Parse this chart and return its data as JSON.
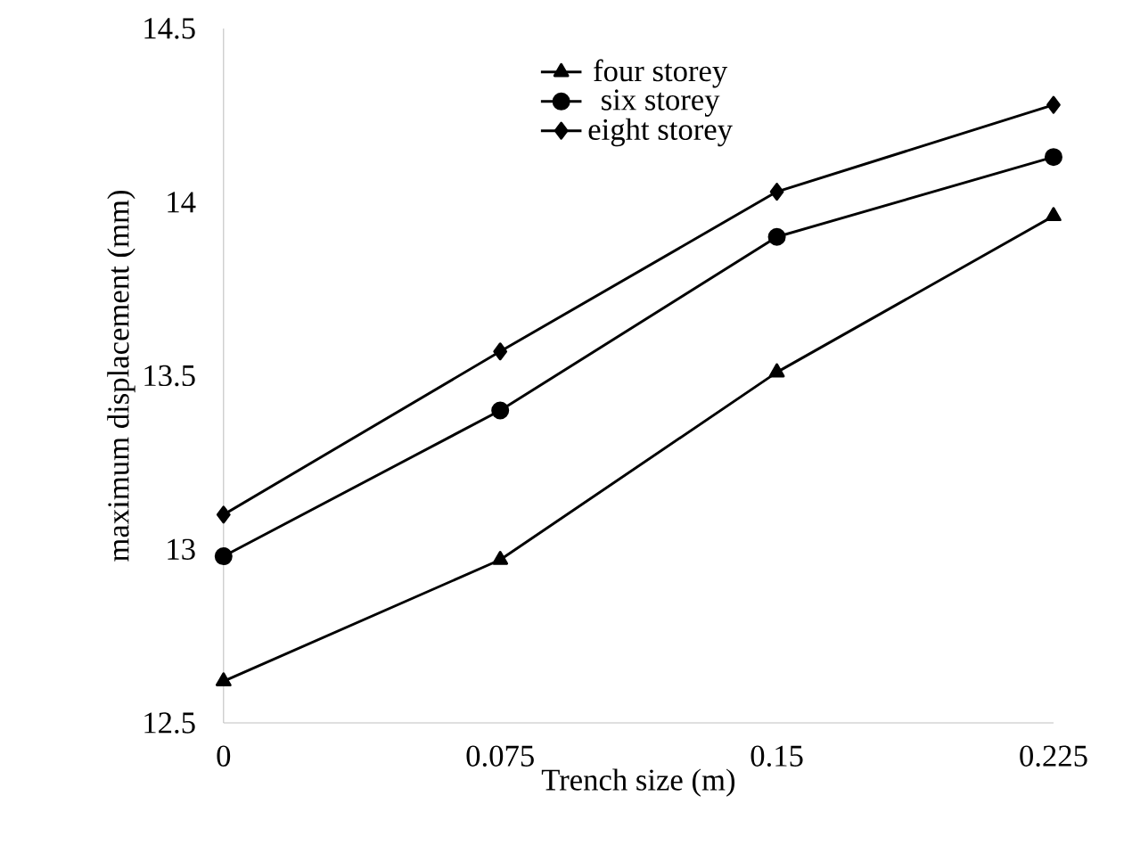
{
  "chart_data": {
    "type": "line",
    "xlabel": "Trench size (m)",
    "ylabel": "maximum  displacement (mm)",
    "categories": [
      "0",
      "0.075",
      "0.15",
      "0.225"
    ],
    "series": [
      {
        "name": "four storey",
        "color": "#000000",
        "marker": "triangle",
        "values": [
          12.62,
          12.97,
          13.51,
          13.96
        ]
      },
      {
        "name": "six storey",
        "color": "#000000",
        "marker": "circle",
        "values": [
          12.98,
          13.4,
          13.9,
          14.13
        ]
      },
      {
        "name": "eight storey",
        "color": "#000000",
        "marker": "diamond",
        "values": [
          13.1,
          13.57,
          14.03,
          14.28
        ]
      }
    ],
    "ylim": [
      12.5,
      14.5
    ],
    "yticks": [
      12.5,
      13,
      13.5,
      14,
      14.5
    ],
    "grid": false,
    "legend": "top",
    "line_style": "solid"
  }
}
